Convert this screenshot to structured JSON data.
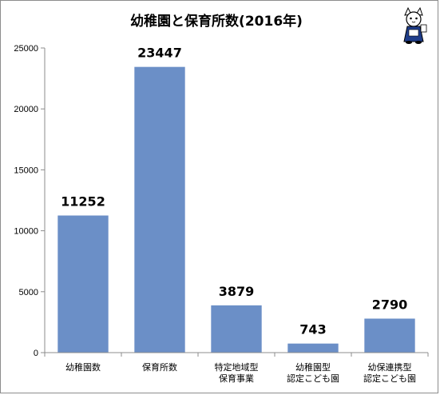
{
  "colors": {
    "bar": "#6b8fc7",
    "axis": "#8c8c8c",
    "frame": "#8c8c8c",
    "text": "#000000"
  },
  "mascot": {
    "icon": "cat-mascot-icon"
  },
  "chart_data": {
    "type": "bar",
    "title": "幼稚園と保育所数(2016年)",
    "xlabel": "",
    "ylabel": "",
    "ylim": [
      0,
      25000
    ],
    "yticks": [
      0,
      5000,
      10000,
      15000,
      20000,
      25000
    ],
    "grid": false,
    "legend": false,
    "categories": [
      [
        "幼稚園数"
      ],
      [
        "保育所数"
      ],
      [
        "特定地域型",
        "保育事業"
      ],
      [
        "幼稚園型",
        "認定こども園"
      ],
      [
        "幼保連携型",
        "認定こども園"
      ]
    ],
    "values": [
      11252,
      23447,
      3879,
      743,
      2790
    ],
    "data_labels": [
      "11252",
      "23447",
      "3879",
      "743",
      "2790"
    ]
  }
}
